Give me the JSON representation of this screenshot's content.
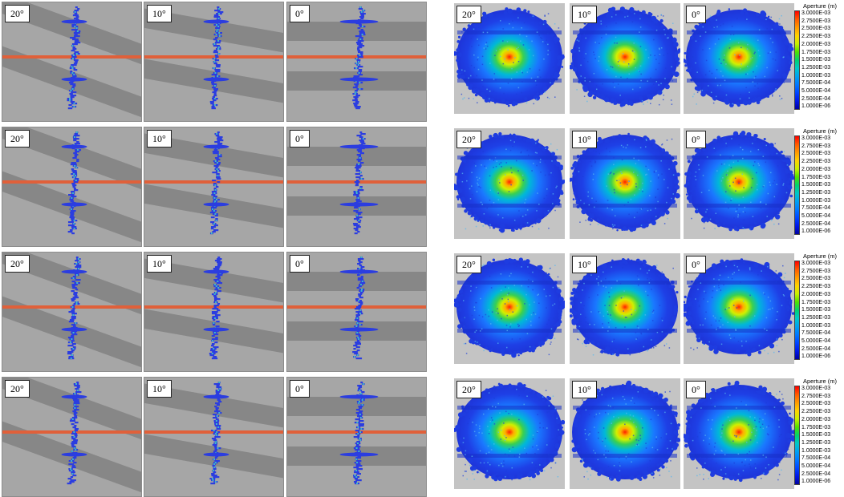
{
  "figure": {
    "rows": [
      {
        "side_panels": [
          {
            "angle_label": "20°",
            "angle_deg": 20
          },
          {
            "angle_label": "10°",
            "angle_deg": 10
          },
          {
            "angle_label": "0°",
            "angle_deg": 0
          }
        ],
        "plan_panels": [
          {
            "angle_label": "20°"
          },
          {
            "angle_label": "10°"
          },
          {
            "angle_label": "0°"
          }
        ]
      },
      {
        "side_panels": [
          {
            "angle_label": "20°",
            "angle_deg": 20
          },
          {
            "angle_label": "10°",
            "angle_deg": 10
          },
          {
            "angle_label": "0°",
            "angle_deg": 0
          }
        ],
        "plan_panels": [
          {
            "angle_label": "20°"
          },
          {
            "angle_label": "10°"
          },
          {
            "angle_label": "0°"
          }
        ]
      },
      {
        "side_panels": [
          {
            "angle_label": "20°",
            "angle_deg": 20
          },
          {
            "angle_label": "10°",
            "angle_deg": 10
          },
          {
            "angle_label": "0°",
            "angle_deg": 0
          }
        ],
        "plan_panels": [
          {
            "angle_label": "20°"
          },
          {
            "angle_label": "10°"
          },
          {
            "angle_label": "0°"
          }
        ]
      },
      {
        "side_panels": [
          {
            "angle_label": "20°",
            "angle_deg": 20
          },
          {
            "angle_label": "10°",
            "angle_deg": 10
          },
          {
            "angle_label": "0°",
            "angle_deg": 0
          }
        ],
        "plan_panels": [
          {
            "angle_label": "20°"
          },
          {
            "angle_label": "10°"
          },
          {
            "angle_label": "0°"
          }
        ]
      }
    ],
    "legend": {
      "title": "Aperture (m)",
      "labels": [
        "3.0000E-03",
        "2.7500E-03",
        "2.5000E-03",
        "2.2500E-03",
        "2.0000E-03",
        "1.7500E-03",
        "1.5000E-03",
        "1.2500E-03",
        "1.0000E-03",
        "7.5000E-04",
        "5.0000E-04",
        "2.5000E-04",
        "1.0000E-06"
      ],
      "colors": [
        "#ff0000",
        "#ff5a00",
        "#ff9a00",
        "#ffd200",
        "#c8f000",
        "#50e000",
        "#00d26e",
        "#00c8c8",
        "#00a0f0",
        "#0078ff",
        "#0046ff",
        "#0018e6",
        "#0000a0"
      ]
    },
    "colors": {
      "side_background": "#a6a6a6",
      "bedding_layer": "#878787",
      "interface_line": "#e0603a",
      "fracture": "#2b3de0",
      "plan_background": "#c4c4c4"
    }
  }
}
